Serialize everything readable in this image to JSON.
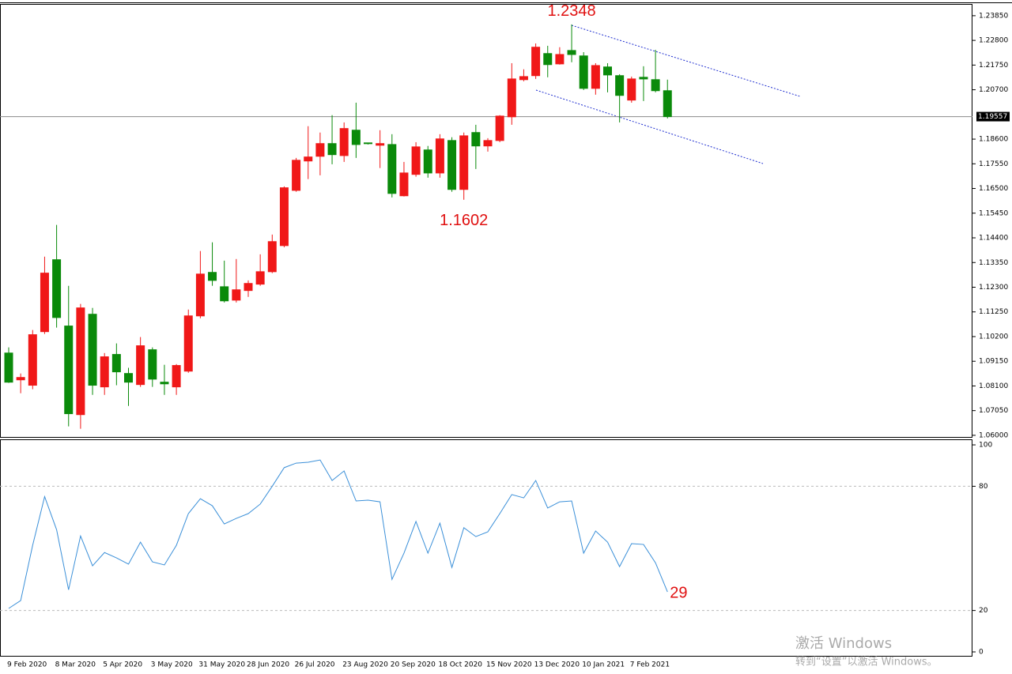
{
  "chart_data": [
    {
      "type": "candlestick",
      "categories": [
        "9 Feb 2020",
        null,
        null,
        null,
        "8 Mar 2020",
        null,
        null,
        null,
        "5 Apr 2020",
        null,
        null,
        null,
        "3 May 2020",
        null,
        null,
        null,
        "31 May 2020",
        null,
        null,
        null,
        "28 Jun 2020",
        null,
        null,
        null,
        "26 Jul 2020",
        null,
        null,
        null,
        "23 Aug 2020",
        null,
        null,
        null,
        "20 Sep 2020",
        null,
        null,
        null,
        "18 Oct 2020",
        null,
        null,
        null,
        "15 Nov 2020",
        null,
        null,
        null,
        "13 Dec 2020",
        null,
        null,
        null,
        "10 Jan 2021",
        null,
        null,
        null,
        "7 Feb 2021",
        null,
        null,
        null
      ],
      "open": [
        1.095,
        1.0836,
        1.0813,
        1.1041,
        1.1347,
        1.1065,
        1.0688,
        1.1115,
        1.0806,
        1.0944,
        1.0863,
        1.0816,
        1.0964,
        1.0826,
        1.0806,
        1.0873,
        1.1108,
        1.1293,
        1.1232,
        1.1175,
        1.1216,
        1.1243,
        1.1296,
        1.1407,
        1.1642,
        1.1767,
        1.1787,
        1.1841,
        1.179,
        1.1898,
        1.1844,
        1.1834,
        1.1837,
        1.1619,
        1.171,
        1.1814,
        1.1716,
        1.1854,
        1.1646,
        1.1888,
        1.1831,
        1.1854,
        1.1955,
        1.2113,
        1.213,
        1.2224,
        1.218,
        1.2237,
        1.2214,
        1.2076,
        1.2167,
        1.213,
        1.2026,
        1.2123,
        1.2113,
        1.2066
      ],
      "high": [
        1.0974,
        1.0863,
        1.1048,
        1.136,
        1.1495,
        1.1236,
        1.1159,
        1.1142,
        1.095,
        1.0991,
        1.0887,
        1.1018,
        1.0974,
        1.09,
        1.0903,
        1.1135,
        1.1384,
        1.1421,
        1.1343,
        1.135,
        1.1259,
        1.137,
        1.1454,
        1.1659,
        1.178,
        1.1915,
        1.1888,
        1.1962,
        1.1931,
        1.2015,
        1.1844,
        1.1898,
        1.1881,
        1.1763,
        1.1847,
        1.1831,
        1.1881,
        1.1868,
        1.1888,
        1.1921,
        1.1864,
        1.1962,
        1.2183,
        1.2157,
        1.2267,
        1.2257,
        1.2251,
        1.2348,
        1.223,
        1.2183,
        1.2183,
        1.2136,
        1.2126,
        1.217,
        1.224,
        1.2113
      ],
      "low": [
        1.0823,
        1.0779,
        1.0796,
        1.1031,
        1.1058,
        1.0638,
        1.0628,
        1.0772,
        1.0772,
        1.0813,
        1.0725,
        1.0806,
        1.0806,
        1.0772,
        1.0772,
        1.0866,
        1.1098,
        1.1236,
        1.1165,
        1.1165,
        1.1189,
        1.1236,
        1.129,
        1.14,
        1.1636,
        1.169,
        1.1706,
        1.1753,
        1.1763,
        1.178,
        1.1837,
        1.1737,
        1.1612,
        1.1616,
        1.17,
        1.1696,
        1.1696,
        1.1636,
        1.1602,
        1.1733,
        1.1807,
        1.1847,
        1.1921,
        1.2106,
        1.2116,
        1.2123,
        1.2177,
        1.2187,
        1.2069,
        1.2049,
        1.2059,
        1.1931,
        1.2015,
        1.2022,
        1.2059,
        1.1948
      ],
      "close": [
        1.0826,
        1.0846,
        1.1028,
        1.129,
        1.1101,
        1.0692,
        1.1142,
        1.0813,
        1.0934,
        1.087,
        1.0826,
        1.0981,
        1.0839,
        1.0819,
        1.0897,
        1.1108,
        1.1286,
        1.1259,
        1.1172,
        1.1219,
        1.1246,
        1.1296,
        1.1424,
        1.1653,
        1.177,
        1.1784,
        1.1841,
        1.1794,
        1.1905,
        1.1837,
        1.1841,
        1.1841,
        1.1629,
        1.1716,
        1.1827,
        1.1716,
        1.1861,
        1.1646,
        1.1874,
        1.1831,
        1.1854,
        1.1958,
        1.2116,
        1.2126,
        1.2251,
        1.2177,
        1.222,
        1.222,
        1.2076,
        1.2173,
        1.2133,
        1.2046,
        1.2116,
        1.2116,
        1.2066,
        1.19557
      ],
      "up_color": "#f01818",
      "down_color": "#0a8a0a",
      "last_price": {
        "value": 1.19557,
        "label": "1.19557"
      },
      "ylim": [
        1.0593,
        1.2435
      ],
      "yticks": [
        {
          "value": 1.2385,
          "label": "1.23850"
        },
        {
          "value": 1.228,
          "label": "1.22800"
        },
        {
          "value": 1.2175,
          "label": "1.21750"
        },
        {
          "value": 1.207,
          "label": "1.20700"
        },
        {
          "value": 1.186,
          "label": "1.18600"
        },
        {
          "value": 1.1755,
          "label": "1.17550"
        },
        {
          "value": 1.165,
          "label": "1.16500"
        },
        {
          "value": 1.1545,
          "label": "1.15450"
        },
        {
          "value": 1.144,
          "label": "1.14400"
        },
        {
          "value": 1.1335,
          "label": "1.13350"
        },
        {
          "value": 1.123,
          "label": "1.12300"
        },
        {
          "value": 1.1125,
          "label": "1.11250"
        },
        {
          "value": 1.102,
          "label": "1.10200"
        },
        {
          "value": 1.0915,
          "label": "1.09150"
        },
        {
          "value": 1.081,
          "label": "1.08100"
        },
        {
          "value": 1.0705,
          "label": "1.07050"
        },
        {
          "value": 1.06,
          "label": "1.06000"
        }
      ]
    },
    {
      "type": "line",
      "values": [
        21,
        24.8,
        51.5,
        75,
        59,
        30,
        56,
        41.6,
        48,
        45.4,
        42.4,
        53,
        43.5,
        42,
        51.5,
        66.8,
        74,
        70.6,
        61.8,
        64.5,
        66.8,
        71.4,
        80,
        89,
        91.2,
        91.6,
        92.7,
        82.8,
        87.4,
        72.9,
        73.3,
        72.5,
        35,
        47.7,
        63,
        47.7,
        62.2,
        40.8,
        60,
        55.7,
        58,
        66.8,
        76,
        74.4,
        82.8,
        69.5,
        72.5,
        72.9,
        47.7,
        58.4,
        53,
        41.2,
        52.3,
        51.9,
        43,
        29
      ],
      "color": "#3a8fd8",
      "ylim": [
        -1.9,
        102.3
      ],
      "yticks": [
        0,
        20,
        80,
        100
      ]
    }
  ],
  "watermark": {
    "title": "激活 Windows",
    "subtitle": "转到“设置”以激活 Windows。"
  }
}
